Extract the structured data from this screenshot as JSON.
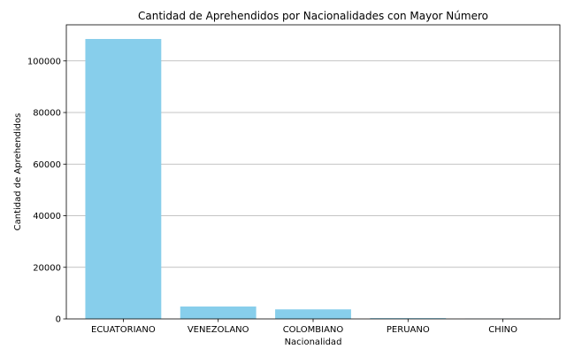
{
  "chart_data": {
    "type": "bar",
    "title": "Cantidad de Aprehendidos por Nacionalidades con Mayor Número",
    "xlabel": "Nacionalidad",
    "ylabel": "Cantidad de Aprehendidos",
    "categories": [
      "ECUATORIANO",
      "VENEZOLANO",
      "COLOMBIANO",
      "PERUANO",
      "CHINO"
    ],
    "values": [
      108500,
      4800,
      3700,
      300,
      100
    ],
    "ylim": [
      0,
      114000
    ],
    "yticks": [
      0,
      20000,
      40000,
      60000,
      80000,
      100000
    ],
    "ytick_labels": [
      "0",
      "20000",
      "40000",
      "60000",
      "80000",
      "100000"
    ],
    "grid": "y",
    "bar_color": "#87ceeb"
  }
}
